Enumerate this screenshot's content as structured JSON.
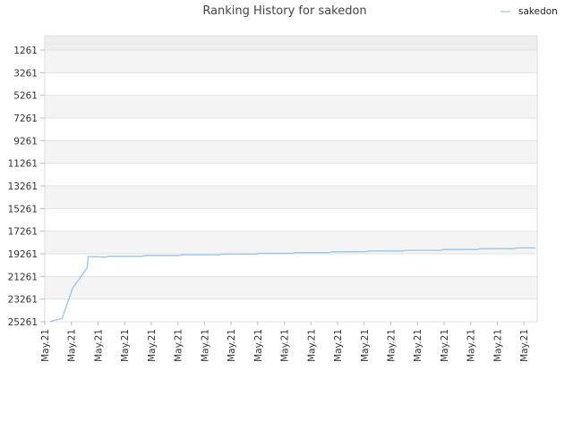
{
  "chart_data": {
    "type": "line",
    "title": "Ranking History for sakedon",
    "xlabel": "",
    "ylabel": "",
    "y_inverted": true,
    "ylim": [
      25261,
      1261
    ],
    "y_ticks": [
      "1261",
      "3261",
      "5261",
      "7261",
      "9261",
      "11261",
      "13261",
      "15261",
      "17261",
      "19261",
      "21261",
      "23261",
      "25261"
    ],
    "x_ticks": [
      "May.21",
      "May.21",
      "May.21",
      "May.21",
      "May.21",
      "May.21",
      "May.21",
      "May.21",
      "May.21",
      "May.21",
      "May.21",
      "May.21",
      "May.21",
      "May.21",
      "May.21",
      "May.21",
      "May.21",
      "May.21",
      "May.21"
    ],
    "grid": true,
    "legend_position": "top-right",
    "series": [
      {
        "name": "sakedon",
        "color": "#92c5f0",
        "x": [
          0.0,
          0.2,
          0.45,
          0.85,
          1.1,
          1.4,
          1.45,
          2.1,
          2.2,
          3.5,
          3.6,
          4.9,
          5.0,
          6.4,
          6.5,
          7.8,
          7.9,
          9.2,
          9.3,
          10.6,
          10.7,
          12.0,
          12.1,
          13.4,
          13.5,
          14.8,
          14.9,
          16.2,
          16.3,
          17.6,
          17.7,
          18.4
        ],
        "values": [
          25261,
          25100,
          25000,
          22300,
          21500,
          20500,
          19500,
          19550,
          19480,
          19480,
          19400,
          19400,
          19350,
          19350,
          19280,
          19280,
          19220,
          19220,
          19150,
          19150,
          19080,
          19080,
          19010,
          19010,
          18950,
          18950,
          18880,
          18880,
          18810,
          18810,
          18740,
          18740
        ]
      }
    ]
  }
}
